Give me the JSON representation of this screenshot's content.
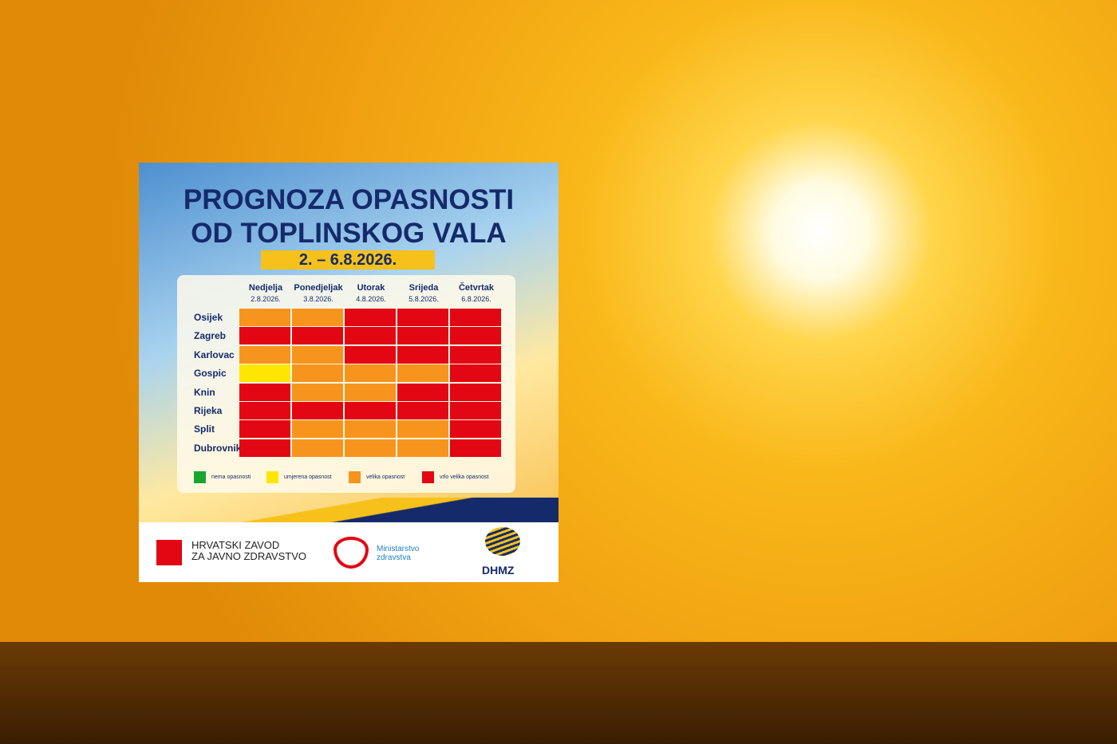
{
  "header": {
    "title_lines": [
      "PROGNOZA OPASNOSTI",
      "OD TOPLINSKOG VALA"
    ],
    "date_range": "2. – 6.8.2026."
  },
  "table": {
    "days": [
      {
        "name": "Nedjelja",
        "date": "2.8.2026."
      },
      {
        "name": "Ponedjeljak",
        "date": "3.8.2026."
      },
      {
        "name": "Utorak",
        "date": "4.8.2026."
      },
      {
        "name": "Srijeda",
        "date": "5.8.2026."
      },
      {
        "name": "Četvrtak",
        "date": "6.8.2026."
      }
    ],
    "rows": [
      {
        "city": "Osijek",
        "colors": [
          "#f7941d",
          "#f7941d",
          "#e30613",
          "#e30613",
          "#e30613"
        ]
      },
      {
        "city": "Zagreb",
        "colors": [
          "#e30613",
          "#e30613",
          "#e30613",
          "#e30613",
          "#e30613"
        ]
      },
      {
        "city": "Karlovac",
        "colors": [
          "#f7941d",
          "#f7941d",
          "#e30613",
          "#e30613",
          "#e30613"
        ]
      },
      {
        "city": "Gospic",
        "colors": [
          "#ffe600",
          "#f7941d",
          "#f7941d",
          "#f7941d",
          "#e30613"
        ]
      },
      {
        "city": "Knin",
        "colors": [
          "#e30613",
          "#f7941d",
          "#f7941d",
          "#e30613",
          "#e30613"
        ]
      },
      {
        "city": "Rijeka",
        "colors": [
          "#e30613",
          "#e30613",
          "#e30613",
          "#e30613",
          "#e30613"
        ]
      },
      {
        "city": "Split",
        "colors": [
          "#e30613",
          "#f7941d",
          "#f7941d",
          "#f7941d",
          "#e30613"
        ]
      },
      {
        "city": "Dubrovnik",
        "colors": [
          "#e30613",
          "#f7941d",
          "#f7941d",
          "#f7941d",
          "#e30613"
        ]
      }
    ]
  },
  "legend": [
    {
      "label": "nema opasnosti",
      "color": "#1aa531"
    },
    {
      "label": "umjerena opasnost",
      "color": "#ffe600"
    },
    {
      "label": "velika opasnost",
      "color": "#f7941d"
    },
    {
      "label": "vrlo velika opasnost",
      "color": "#e30613"
    }
  ],
  "footer": {
    "hzjz": [
      "HRVATSKI ZAVOD",
      "ZA JAVNO ZDRAVSTVO"
    ],
    "ministry": [
      "Ministarstvo",
      "zdravstva"
    ],
    "dhmz": "DHMZ"
  }
}
